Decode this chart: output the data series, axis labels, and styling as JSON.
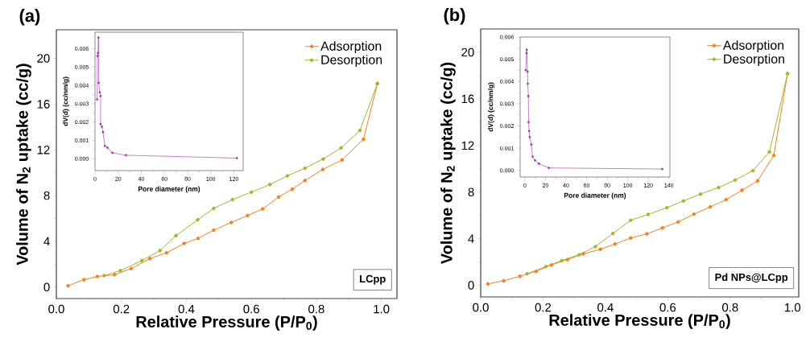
{
  "chart_data": [
    {
      "type": "line",
      "title": "(a)",
      "xlabel": "Relative Pressure (P/P$_{0}$)",
      "ylabel": "Volume of N$_{2}$ uptake (cc/g)",
      "legend": "top right",
      "marker": "circle",
      "annotations": [
        "LCpp"
      ],
      "xlim": [
        0,
        1.048
      ],
      "ylim": [
        -1,
        22.5
      ],
      "xticks": [
        {
          "value": 0,
          "label": "0.0"
        },
        {
          "value": 0.2,
          "label": "0.2"
        },
        {
          "value": 0.4,
          "label": "0.4"
        },
        {
          "value": 0.6,
          "label": "0.6"
        },
        {
          "value": 0.8,
          "label": "0.8"
        },
        {
          "value": 1.0,
          "label": "1.0"
        }
      ],
      "yticks": [
        0,
        4,
        8,
        12,
        16,
        20
      ],
      "series": [
        {
          "name": "Adsorption",
          "color": "#f5821f",
          "x": [
            0.036,
            0.085,
            0.126,
            0.179,
            0.23,
            0.288,
            0.339,
            0.393,
            0.436,
            0.484,
            0.538,
            0.588,
            0.635,
            0.684,
            0.726,
            0.765,
            0.82,
            0.879,
            0.945,
            0.988
          ],
          "values": [
            0.12,
            0.65,
            0.93,
            1.09,
            1.62,
            2.5,
            3.0,
            3.82,
            4.26,
            4.98,
            5.65,
            6.26,
            6.84,
            7.88,
            8.57,
            9.32,
            10.29,
            11.12,
            12.93,
            17.8
          ]
        },
        {
          "name": "Desorption",
          "color": "#a8b42a",
          "x": [
            0.988,
            0.934,
            0.876,
            0.821,
            0.765,
            0.711,
            0.657,
            0.6,
            0.542,
            0.484,
            0.435,
            0.368,
            0.319,
            0.263,
            0.197,
            0.147
          ],
          "values": [
            17.8,
            13.7,
            12.17,
            11.2,
            10.4,
            9.73,
            8.97,
            8.3,
            7.65,
            6.88,
            5.89,
            4.5,
            3.2,
            2.32,
            1.44,
            1.0
          ]
        }
      ]
    },
    {
      "type": "line",
      "xlabel": "Pore diameter (nm)",
      "ylabel": "dV(d) (cc/nm/g)",
      "marker": "circle",
      "xlim": [
        0,
        128
      ],
      "ylim": [
        -0.00065,
        0.0069
      ],
      "xticks": [
        0,
        20,
        40,
        60,
        80,
        100,
        120
      ],
      "yticks": [
        {
          "value": 0,
          "label": "0.000"
        },
        {
          "value": 0.001,
          "label": "0.001"
        },
        {
          "value": 0.002,
          "label": "0.002"
        },
        {
          "value": 0.003,
          "label": "0.003"
        },
        {
          "value": 0.004,
          "label": "0.004"
        },
        {
          "value": 0.005,
          "label": "0.005"
        },
        {
          "value": 0.006,
          "label": "0.006"
        }
      ],
      "series": [
        {
          "color": "#9b30a0",
          "x": [
            1.8,
            2.1,
            2.5,
            3.0,
            3.2,
            4.1,
            4.8,
            4.8,
            6.0,
            6.9,
            8.5,
            10.8,
            15,
            26.7,
            122.6
          ],
          "values": [
            0.00323,
            0.0056,
            0.00577,
            0.00661,
            0.00414,
            0.00362,
            0.00342,
            0.00189,
            0.00174,
            0.00145,
            0.0007,
            0.0006,
            0.00032,
            0.00019,
            3e-05
          ]
        }
      ]
    },
    {
      "type": "line",
      "title": "(b)",
      "xlabel": "Relative Pressure (P/P$_{0}$)",
      "ylabel": "Volume of N$_{2}$ uptake (cc/g)",
      "legend": "top right",
      "marker": "circle",
      "annotations": [
        "Pd NPs@LCpp"
      ],
      "xlim": [
        0,
        1.02
      ],
      "ylim": [
        -1,
        22
      ],
      "xticks": [
        {
          "value": 0,
          "label": "0.0"
        },
        {
          "value": 0.2,
          "label": "0.2"
        },
        {
          "value": 0.4,
          "label": "0.4"
        },
        {
          "value": 0.6,
          "label": "0.6"
        },
        {
          "value": 0.8,
          "label": "0.8"
        },
        {
          "value": 1.0,
          "label": "1.0"
        }
      ],
      "yticks": [
        0,
        4,
        8,
        12,
        16,
        20
      ],
      "series": [
        {
          "name": "Adsorption",
          "color": "#f5821f",
          "x": [
            0.023,
            0.074,
            0.126,
            0.178,
            0.227,
            0.279,
            0.329,
            0.384,
            0.431,
            0.481,
            0.533,
            0.583,
            0.633,
            0.684,
            0.736,
            0.787,
            0.838,
            0.888,
            0.94,
            0.984
          ],
          "values": [
            0.12,
            0.39,
            0.78,
            1.2,
            1.75,
            2.21,
            2.7,
            3.09,
            3.55,
            4.06,
            4.42,
            4.93,
            5.44,
            6.11,
            6.73,
            7.35,
            8.16,
            8.96,
            11.15,
            18.16
          ]
        },
        {
          "name": "Desorption",
          "color": "#a8b42a",
          "x": [
            0.984,
            0.926,
            0.873,
            0.816,
            0.763,
            0.705,
            0.65,
            0.597,
            0.537,
            0.481,
            0.424,
            0.368,
            0.316,
            0.26,
            0.209,
            0.149
          ],
          "values": [
            18.16,
            11.45,
            9.84,
            9.03,
            8.39,
            7.83,
            7.24,
            6.66,
            6.08,
            5.58,
            4.45,
            3.32,
            2.63,
            2.12,
            1.61,
            0.99
          ]
        }
      ]
    },
    {
      "type": "line",
      "xlabel": "Pore diameter (nm)",
      "ylabel": "dV(d) (cc/nm/g)",
      "marker": "circle",
      "xlim": [
        -4.6,
        141
      ],
      "ylim": [
        -0.0003,
        0.006
      ],
      "xticks": [
        0,
        20,
        40,
        60,
        80,
        100,
        120,
        140
      ],
      "yticks": [
        {
          "value": 0,
          "label": "0.000"
        },
        {
          "value": 0.001,
          "label": "0.001"
        },
        {
          "value": 0.002,
          "label": "0.002"
        },
        {
          "value": 0.003,
          "label": "0.003"
        },
        {
          "value": 0.004,
          "label": "0.004"
        },
        {
          "value": 0.005,
          "label": "0.005"
        },
        {
          "value": 0.006,
          "label": "0.006"
        }
      ],
      "series": [
        {
          "color": "#9b30a0",
          "x": [
            0.8,
            1.6,
            1.8,
            2.6,
            2.8,
            3.4,
            3.6,
            4.1,
            4.7,
            6.2,
            7.5,
            9.8,
            13.7,
            23.3,
            133.6
          ],
          "values": [
            0.00451,
            0.00527,
            0.00543,
            0.00444,
            0.0039,
            0.00334,
            0.00217,
            0.00177,
            0.0015,
            0.00116,
            0.00062,
            0.00045,
            0.0003,
            0.00011,
            6e-05
          ]
        }
      ]
    }
  ]
}
